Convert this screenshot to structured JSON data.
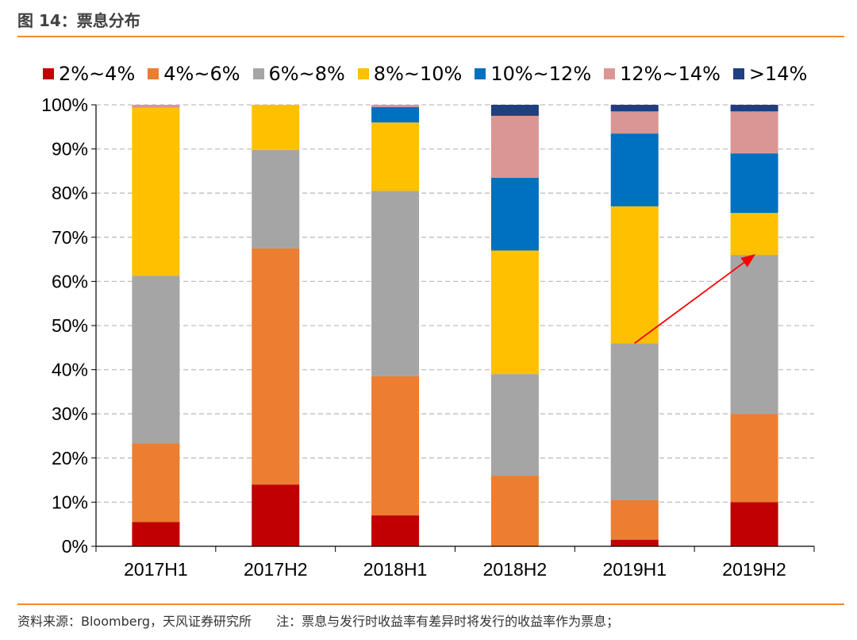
{
  "figure": {
    "title": "图 14：票息分布",
    "source": "资料来源：Bloomberg，天风证券研究所",
    "note": "注：票息与发行时收益率有差异时将发行的收益率作为票息；"
  },
  "chart_data": {
    "type": "bar",
    "stacked": true,
    "categories": [
      "2017H1",
      "2017H2",
      "2018H1",
      "2018H2",
      "2019H1",
      "2019H2"
    ],
    "y_ticks": [
      "0%",
      "10%",
      "20%",
      "30%",
      "40%",
      "50%",
      "60%",
      "70%",
      "80%",
      "90%",
      "100%"
    ],
    "ylim": [
      0,
      100
    ],
    "grid": true,
    "legend_position": "top",
    "series": [
      {
        "name": "2%~4%",
        "color": "#c00000",
        "values": [
          5.5,
          14.0,
          7.0,
          0.0,
          1.5,
          10.0
        ]
      },
      {
        "name": "4%~6%",
        "color": "#ed7d31",
        "values": [
          17.8,
          53.5,
          31.5,
          16.0,
          9.0,
          20.0
        ]
      },
      {
        "name": "6%~8%",
        "color": "#a5a5a5",
        "values": [
          38.0,
          22.3,
          42.0,
          23.0,
          35.5,
          36.0
        ]
      },
      {
        "name": "8%~10%",
        "color": "#ffc000",
        "values": [
          38.0,
          10.2,
          15.5,
          28.0,
          31.0,
          9.5
        ]
      },
      {
        "name": "10%~12%",
        "color": "#0070c0",
        "values": [
          0.0,
          0.0,
          3.5,
          16.5,
          16.5,
          13.5
        ]
      },
      {
        "name": "12%~14%",
        "color": "#da9694",
        "values": [
          0.7,
          0.0,
          0.5,
          14.0,
          5.0,
          9.5
        ]
      },
      {
        "name": ">14%",
        "color": "#1f3f7f",
        "values": [
          0.0,
          0.0,
          0.0,
          2.5,
          1.5,
          1.5
        ]
      }
    ],
    "annotation": {
      "type": "arrow",
      "color": "#ff0000",
      "from": {
        "category": "2019H1",
        "value": 46
      },
      "to": {
        "category": "2019H2",
        "value": 66
      }
    }
  }
}
